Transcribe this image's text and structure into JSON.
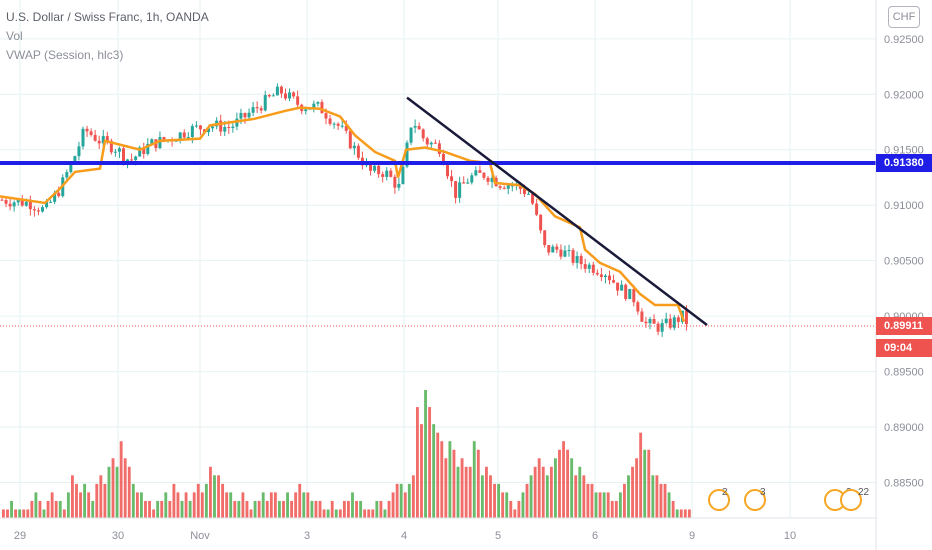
{
  "legend": {
    "symbol": "U.S. Dollar / Swiss Franc, 1h, OANDA",
    "volume": "Vol",
    "vwap": "VWAP (Session, hlc3)"
  },
  "currency_badge": "CHF",
  "price_tags": {
    "level": "0.91380",
    "last_price": "0.89911",
    "countdown": "09:04"
  },
  "colors": {
    "up": "#26a69a",
    "up_volume": "#4caf50",
    "down": "#ef5350",
    "vwap": "#f89c1c",
    "level_line": "#1e1ee6",
    "trend_line": "#1a1a3a",
    "last_price_tag": "#ef5350",
    "level_tag": "#1e1ee6"
  },
  "events": [
    {
      "icon": "calendar-event-icon",
      "count": "2"
    },
    {
      "icon": "us-flag-event-icon",
      "count": "3"
    },
    {
      "icon": "us-flag-event-icon",
      "count": "2"
    },
    {
      "icon": "us-flag-event-icon",
      "count": "22"
    }
  ],
  "chart_data": {
    "type": "candlestick",
    "title": "U.S. Dollar / Swiss Franc, 1h, OANDA",
    "x_ticks": [
      "29",
      "30",
      "Nov",
      "3",
      "4",
      "5",
      "6",
      "9",
      "10"
    ],
    "y_ticks": [
      "0.88500",
      "0.89000",
      "0.89500",
      "0.90000",
      "0.90500",
      "0.91000",
      "0.91500",
      "0.92000",
      "0.92500"
    ],
    "ylim": [
      0.8818,
      0.9285
    ],
    "price_path": [
      [
        0,
        0.9105
      ],
      [
        30,
        0.9102
      ],
      [
        45,
        0.9095
      ],
      [
        60,
        0.9115
      ],
      [
        75,
        0.9145
      ],
      [
        85,
        0.9168
      ],
      [
        100,
        0.9158
      ],
      [
        115,
        0.9152
      ],
      [
        130,
        0.914
      ],
      [
        150,
        0.9155
      ],
      [
        170,
        0.916
      ],
      [
        190,
        0.9168
      ],
      [
        210,
        0.9172
      ],
      [
        230,
        0.917
      ],
      [
        245,
        0.918
      ],
      [
        260,
        0.919
      ],
      [
        280,
        0.9203
      ],
      [
        300,
        0.919
      ],
      [
        320,
        0.9188
      ],
      [
        340,
        0.917
      ],
      [
        355,
        0.915
      ],
      [
        370,
        0.913
      ],
      [
        385,
        0.913
      ],
      [
        400,
        0.9115
      ],
      [
        412,
        0.9178
      ],
      [
        425,
        0.9158
      ],
      [
        440,
        0.9152
      ],
      [
        455,
        0.911
      ],
      [
        470,
        0.9125
      ],
      [
        485,
        0.9128
      ],
      [
        500,
        0.912
      ],
      [
        515,
        0.9118
      ],
      [
        530,
        0.911
      ],
      [
        545,
        0.906
      ],
      [
        560,
        0.906
      ],
      [
        575,
        0.905
      ],
      [
        590,
        0.9045
      ],
      [
        605,
        0.904
      ],
      [
        620,
        0.9025
      ],
      [
        635,
        0.9015
      ],
      [
        645,
        0.8993
      ],
      [
        660,
        0.899
      ],
      [
        672,
        0.8994
      ],
      [
        682,
        0.9
      ],
      [
        690,
        0.8991
      ]
    ],
    "vwap_path": [
      [
        0,
        0.9108
      ],
      [
        45,
        0.9102
      ],
      [
        60,
        0.9115
      ],
      [
        75,
        0.913
      ],
      [
        100,
        0.9133
      ],
      [
        105,
        0.9158
      ],
      [
        140,
        0.915
      ],
      [
        160,
        0.9158
      ],
      [
        200,
        0.916
      ],
      [
        210,
        0.9172
      ],
      [
        255,
        0.9178
      ],
      [
        285,
        0.9185
      ],
      [
        300,
        0.9188
      ],
      [
        320,
        0.9187
      ],
      [
        340,
        0.918
      ],
      [
        355,
        0.9163
      ],
      [
        375,
        0.9148
      ],
      [
        395,
        0.914
      ],
      [
        398,
        0.9125
      ],
      [
        406,
        0.915
      ],
      [
        425,
        0.9152
      ],
      [
        445,
        0.9148
      ],
      [
        470,
        0.914
      ],
      [
        490,
        0.9138
      ],
      [
        495,
        0.912
      ],
      [
        520,
        0.9118
      ],
      [
        535,
        0.911
      ],
      [
        555,
        0.909
      ],
      [
        580,
        0.908
      ],
      [
        585,
        0.906
      ],
      [
        600,
        0.9048
      ],
      [
        620,
        0.904
      ],
      [
        640,
        0.902
      ],
      [
        655,
        0.901
      ],
      [
        678,
        0.901
      ],
      [
        684,
        0.8995
      ]
    ],
    "volume": [
      1,
      1,
      2,
      1,
      1,
      1,
      1,
      2,
      3,
      2,
      1,
      2,
      3,
      2,
      2,
      1,
      3,
      5,
      4,
      3,
      4,
      3,
      2,
      4,
      5,
      4,
      6,
      7,
      6,
      9,
      7,
      6,
      4,
      3,
      3,
      2,
      2,
      1,
      2,
      2,
      3,
      2,
      4,
      3,
      2,
      3,
      2,
      3,
      4,
      3,
      4,
      6,
      5,
      5,
      4,
      3,
      3,
      2,
      2,
      3,
      2,
      1,
      2,
      2,
      3,
      2,
      3,
      3,
      2,
      2,
      3,
      2,
      3,
      4,
      3,
      3,
      2,
      2,
      2,
      1,
      1,
      2,
      1,
      1,
      2,
      2,
      3,
      2,
      2,
      1,
      1,
      1,
      2,
      2,
      1,
      2,
      3,
      4,
      4,
      3,
      4,
      5,
      13,
      11,
      15,
      13,
      11,
      10,
      9,
      7,
      9,
      8,
      6,
      7,
      6,
      6,
      9,
      8,
      5,
      6,
      5,
      4,
      4,
      3,
      3,
      2,
      1,
      2,
      3,
      4,
      5,
      6,
      7,
      6,
      5,
      6,
      7,
      8,
      9,
      8,
      7,
      5,
      6,
      5,
      4,
      4,
      3,
      3,
      3,
      3,
      2,
      2,
      3,
      4,
      5,
      6,
      7,
      10,
      8,
      8,
      5,
      5,
      4,
      4,
      3,
      2,
      1,
      1,
      1,
      1
    ],
    "horizontal_level": 0.9138,
    "trend_line": [
      [
        407,
        0.9197
      ],
      [
        707,
        0.8992
      ]
    ],
    "last_price": 0.89911
  }
}
